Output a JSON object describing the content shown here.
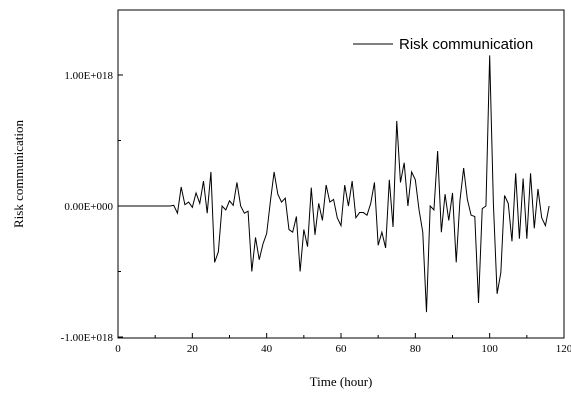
{
  "chart_data": {
    "type": "line",
    "title": "",
    "xlabel": "Time (hour)",
    "ylabel": "Risk communication",
    "xlim": [
      0,
      120
    ],
    "ylim": [
      -1e+18,
      1e+18
    ],
    "x_ticks": [
      0,
      20,
      40,
      60,
      80,
      100,
      120
    ],
    "x_tick_labels": [
      "0",
      "20",
      "40",
      "60",
      "80",
      "100",
      "120"
    ],
    "y_ticks": [
      -1e+18,
      0,
      1e+18
    ],
    "y_tick_labels": [
      "-1.00E+018",
      "0.00E+000",
      "1.00E+018"
    ],
    "grid": false,
    "legend_position": "top-right",
    "series": [
      {
        "name": "Risk communication",
        "color": "#000000",
        "x": [
          0,
          1,
          2,
          3,
          4,
          5,
          6,
          7,
          8,
          9,
          10,
          11,
          12,
          13,
          14,
          15,
          16,
          17,
          18,
          19,
          20,
          21,
          22,
          23,
          24,
          25,
          26,
          27,
          28,
          29,
          30,
          31,
          32,
          33,
          34,
          35,
          36,
          37,
          38,
          39,
          40,
          41,
          42,
          43,
          44,
          45,
          46,
          47,
          48,
          49,
          50,
          51,
          52,
          53,
          54,
          55,
          56,
          57,
          58,
          59,
          60,
          61,
          62,
          63,
          64,
          65,
          66,
          67,
          68,
          69,
          70,
          71,
          72,
          73,
          74,
          75,
          76,
          77,
          78,
          79,
          80,
          81,
          82,
          83,
          84,
          85,
          86,
          87,
          88,
          89,
          90,
          91,
          92,
          93,
          94,
          95,
          96,
          97,
          98,
          99,
          100,
          101,
          102,
          103,
          104,
          105,
          106,
          107,
          108,
          109,
          110,
          111,
          112,
          113,
          114,
          115,
          116
        ],
        "values": [
          0.0,
          0.0,
          0.0,
          0.0,
          0.0,
          0.0,
          0.0,
          0.0,
          0.0,
          0.0,
          0.0,
          0.0,
          0.0,
          0.0,
          0.0,
          5000000000000000.0,
          -5.5e+16,
          1.45e+17,
          1e+16,
          3e+16,
          -1e+16,
          1e+17,
          2e+16,
          1.9e+17,
          -5.5e+16,
          2.6e+17,
          -4.3e+17,
          -3.5e+17,
          0.0,
          -3e+16,
          4e+16,
          5000000000000000.0,
          1.8e+17,
          0.0,
          -5.5e+16,
          -4e+16,
          -5e+17,
          -2.4e+17,
          -4.1e+17,
          -2.9e+17,
          -2.1e+17,
          3.5e+16,
          2.6e+17,
          9e+16,
          3e+16,
          6e+16,
          -1.8e+17,
          -2e+17,
          -8e+16,
          -5e+17,
          -1.8e+17,
          -3.1e+17,
          1.4e+17,
          -2.2e+17,
          2e+16,
          -1.1e+17,
          1.6e+17,
          3e+16,
          5e+16,
          -9e+16,
          -1.5e+17,
          1.6e+17,
          0.0,
          1.9e+17,
          -9e+16,
          -5e+16,
          -5e+16,
          -7e+16,
          2e+16,
          1.8e+17,
          -3e+17,
          -2e+17,
          -3.2e+17,
          2e+17,
          -1.6e+17,
          6.5e+17,
          1.8e+17,
          3.3e+17,
          0.0,
          2.6e+17,
          2e+17,
          -3e+16,
          -2e+17,
          -8.1e+17,
          0.0,
          -3e+16,
          4.2e+17,
          -2e+17,
          9e+16,
          -1.1e+17,
          1e+17,
          -4.3e+17,
          4e+16,
          2.9e+17,
          5e+16,
          -7e+16,
          -8e+16,
          -7.4e+17,
          -2e+16,
          0.0,
          1.15e+18,
          2e+16,
          -6.7e+17,
          -5.1e+17,
          8e+16,
          2e+16,
          -2.7e+17,
          2.5e+17,
          -2.5e+17,
          2.1e+17,
          -2.5e+17,
          2.5e+17,
          -1.7e+17,
          1.3e+17,
          -9e+16,
          -1.5e+17,
          0.0
        ]
      }
    ]
  }
}
